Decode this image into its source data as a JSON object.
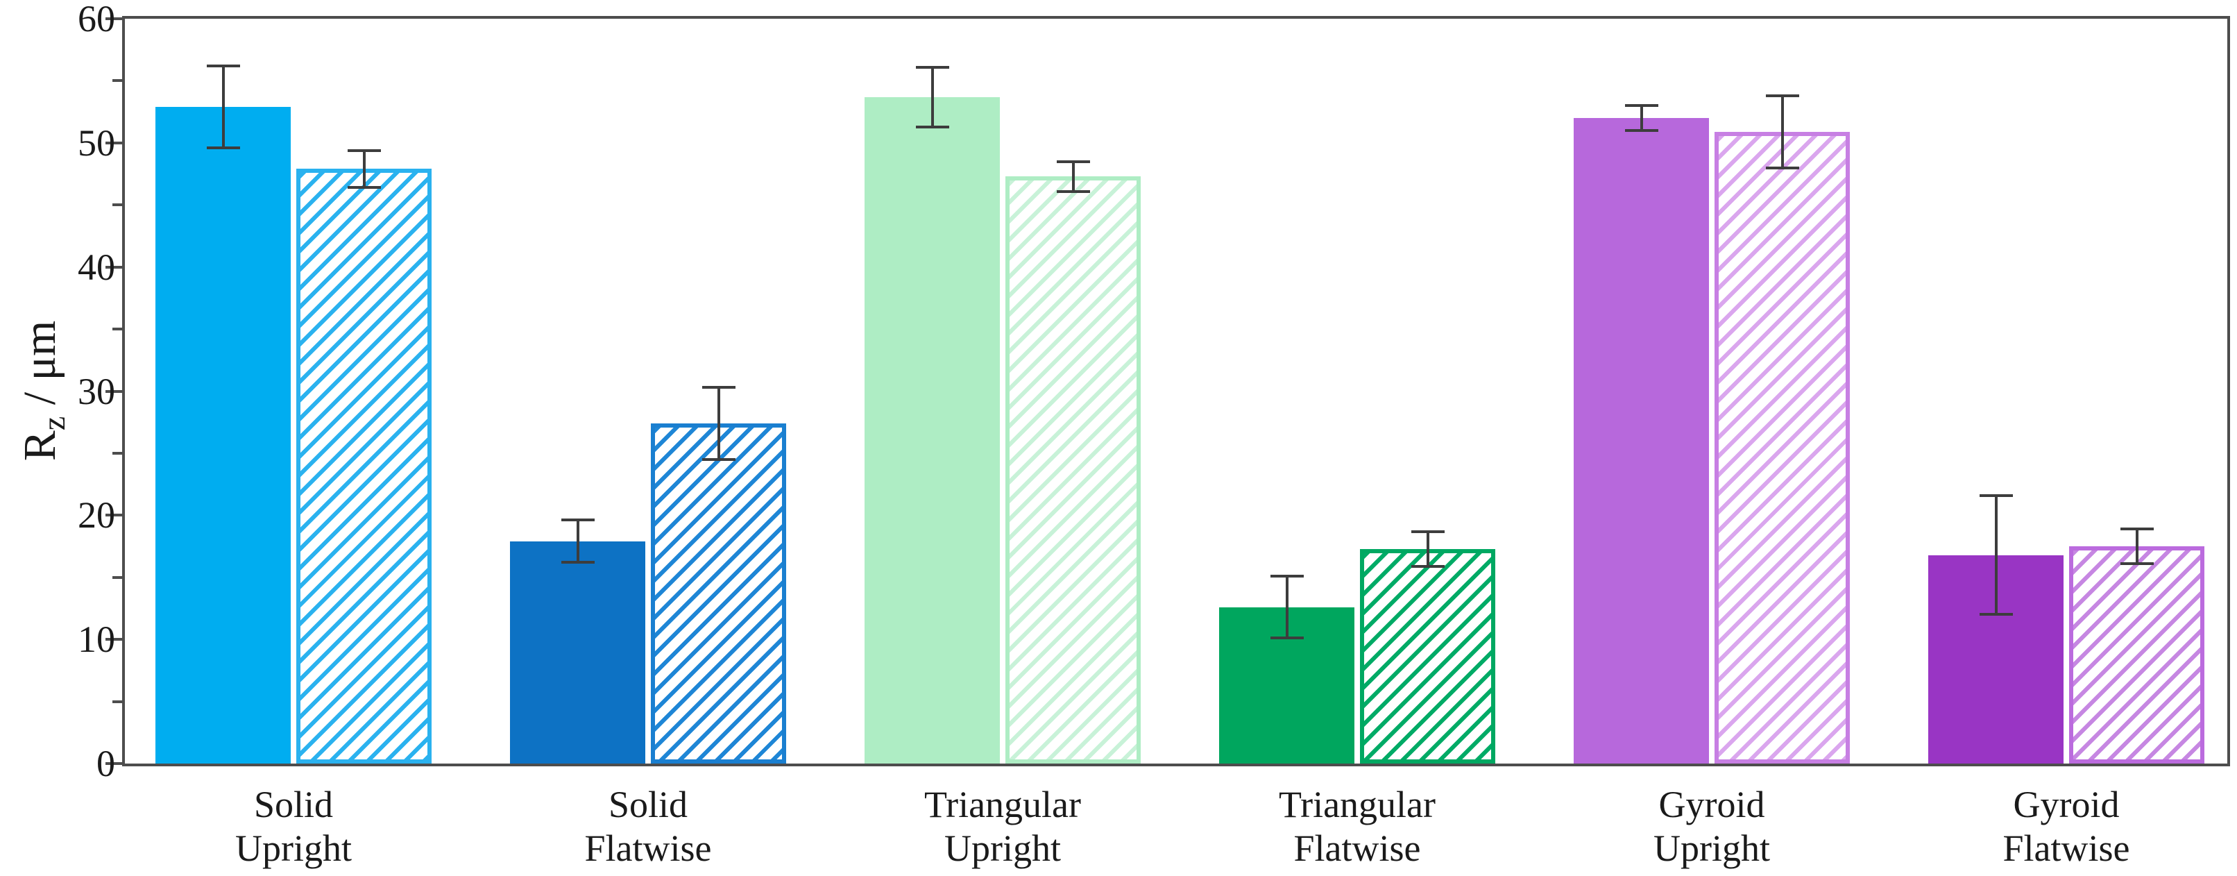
{
  "figure": {
    "background": "#ffffff",
    "kind": "grouped bar chart with error bars"
  },
  "chart_data": {
    "type": "bar",
    "title": "",
    "xlabel": "",
    "ylabel": {
      "main": "R",
      "sub": "z",
      "unit": " / μm"
    },
    "ylim": [
      0,
      60
    ],
    "yticks_major": [
      0,
      10,
      20,
      30,
      40,
      50,
      60
    ],
    "yticks_minor": [
      5,
      15,
      25,
      35,
      45,
      55
    ],
    "grid": false,
    "legend_position": "none",
    "categories": [
      {
        "line1": "Solid",
        "line2": "Upright"
      },
      {
        "line1": "Solid",
        "line2": "Flatwise"
      },
      {
        "line1": "Triangular",
        "line2": "Upright"
      },
      {
        "line1": "Triangular",
        "line2": "Flatwise"
      },
      {
        "line1": "Gyroid",
        "line2": "Upright"
      },
      {
        "line1": "Gyroid",
        "line2": "Flatwise"
      }
    ],
    "series": [
      {
        "name": "solid-filled-bars",
        "style": "solid",
        "values": [
          52.9,
          17.9,
          53.7,
          12.6,
          52.0,
          16.8
        ],
        "errors": [
          3.3,
          1.7,
          2.4,
          2.5,
          1.0,
          4.8
        ]
      },
      {
        "name": "hatched-bars",
        "style": "hatched",
        "values": [
          47.9,
          27.4,
          47.3,
          17.3,
          50.9,
          17.5
        ],
        "errors": [
          1.5,
          2.9,
          1.2,
          1.4,
          2.9,
          1.4
        ]
      }
    ],
    "group_colors": [
      {
        "fill": "#00adf0",
        "hatch_border": "#2ab2ef",
        "hatch_line": "#2ab2ef"
      },
      {
        "fill": "#0d72c4",
        "hatch_border": "#1a7fd0",
        "hatch_line": "#1e86d6"
      },
      {
        "fill": "#aeedc4",
        "hatch_border": "#aeedc4",
        "hatch_line": "#c8f2d8"
      },
      {
        "fill": "#00a65e",
        "hatch_border": "#00a862",
        "hatch_line": "#00ab66"
      },
      {
        "fill": "#b768dc",
        "hatch_border": "#c77fe3",
        "hatch_line": "#daa6ee"
      },
      {
        "fill": "#9935c4",
        "hatch_border": "#bb6bde",
        "hatch_line": "#c687e2"
      }
    ],
    "style_colors": {
      "axis": "#4d4d4d",
      "error_bar": "#3d3d3d",
      "text": "#1a1a1a"
    }
  }
}
